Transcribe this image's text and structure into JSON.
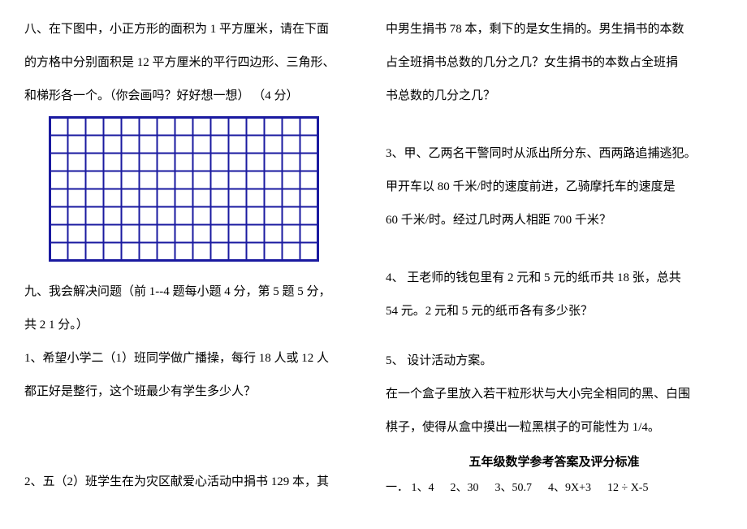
{
  "left": {
    "q8_l1": "八、在下图中，小正方形的面积为 1 平方厘米，请在下面",
    "q8_l2": "的方格中分别面积是 12 平方厘米的平行四边形、三角形、",
    "q8_l3": "和梯形各一个。（你会画吗？好好想一想）  （4 分）",
    "grid": {
      "cols": 15,
      "rows": 8,
      "cell": 22,
      "stroke": "#1a1aa0",
      "border_w": 3,
      "line_w": 2
    },
    "q9_l1": "九、我会解决问题（前 1--4 题每小题 4 分，第 5 题 5 分，",
    "q9_l2": "共 2 1 分。）",
    "q9_1_l1": "1、希望小学二（1）班同学做广播操，每行 18 人或 12 人",
    "q9_1_l2": "都正好是整行，这个班最少有学生多少人？",
    "q9_2": "2、五（2）班学生在为灾区献爱心活动中捐书 129 本，其"
  },
  "right": {
    "q9_2_l1": "中男生捐书 78 本，剩下的是女生捐的。男生捐书的本数",
    "q9_2_l2": "占全班捐书总数的几分之几？女生捐书的本数占全班捐",
    "q9_2_l3": "书总数的几分之几？",
    "q9_3_l1": "3、甲、乙两名干警同时从派出所分东、西两路追捕逃犯。",
    "q9_3_l2": "甲开车以 80 千米/时的速度前进，乙骑摩托车的速度是",
    "q9_3_l3": "60 千米/时。经过几时两人相距 700 千米？",
    "q9_4_l1": "4、 王老师的钱包里有 2 元和 5 元的纸币共 18 张，总共",
    "q9_4_l2": "54 元。2 元和 5 元的纸币各有多少张？",
    "q9_5_l1": "5、 设计活动方案。",
    "q9_5_l2": "在一个盒子里放入若干粒形状与大小完全相同的黑、白围",
    "q9_5_l3": "棋子，使得从盒中摸出一粒黑棋子的可能性为 1/4。",
    "ans_title": "五年级数学参考答案及评分标准",
    "ans_prefix": "一．",
    "answers": [
      "1、4",
      "2、30",
      "3、50.7",
      "4、9X+3",
      "12 ÷ X-5"
    ]
  }
}
